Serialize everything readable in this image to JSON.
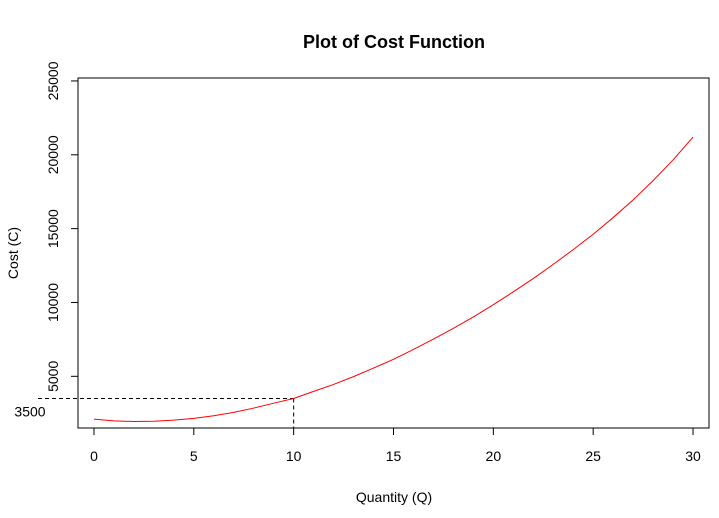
{
  "chart_data": {
    "type": "line",
    "title": "Plot of Cost Function",
    "xlabel": "Quantity (Q)",
    "ylabel": "Cost (C)",
    "xlim": [
      -0.8,
      30.8
    ],
    "ylim": [
      1500,
      25200
    ],
    "x_ticks": [
      "0",
      "5",
      "10",
      "15",
      "20",
      "25",
      "30"
    ],
    "y_ticks": [
      "5000",
      "10000",
      "15000",
      "20000",
      "25000"
    ],
    "grid": false,
    "line_color": "#ff0000",
    "series": [
      {
        "x": [
          0,
          1,
          2,
          3,
          4,
          5,
          6,
          7,
          8,
          9,
          10,
          11,
          12,
          13,
          14,
          15,
          16,
          17,
          18,
          19,
          20,
          21,
          22,
          23,
          24,
          25,
          26,
          27,
          28,
          29,
          30
        ],
        "values": [
          2100,
          1980,
          1940,
          1960,
          2030,
          2150,
          2330,
          2560,
          2850,
          3180,
          3500,
          3980,
          4450,
          4980,
          5560,
          6150,
          6820,
          7520,
          8250,
          9020,
          9850,
          10720,
          11620,
          12580,
          13580,
          14620,
          15750,
          16950,
          18250,
          19650,
          21200
        ]
      }
    ],
    "reference": {
      "x": 10,
      "y": 3500,
      "y_label": "3500",
      "line_style": "dashed"
    }
  }
}
